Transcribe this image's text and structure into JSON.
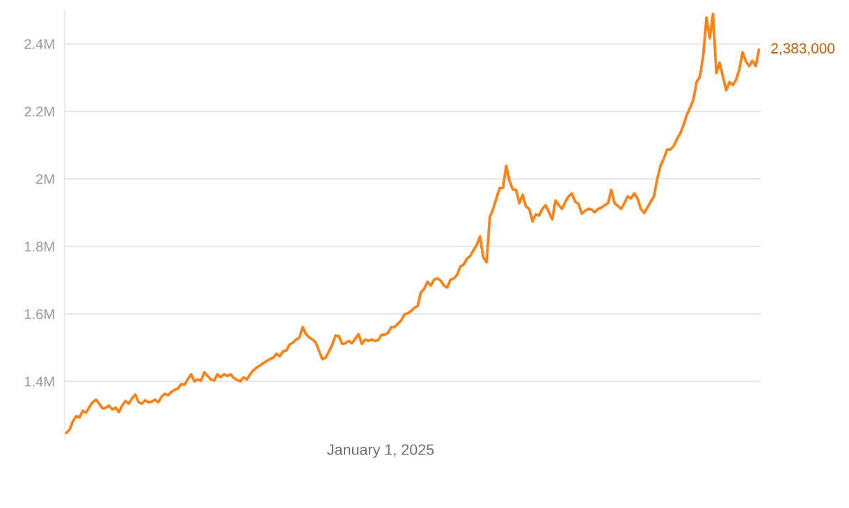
{
  "chart_data": {
    "type": "line",
    "grid": "y",
    "marker": "none",
    "line_style": "solid",
    "yticks": [
      {
        "value": 1400000,
        "label": "1.4M"
      },
      {
        "value": 1600000,
        "label": "1.6M"
      },
      {
        "value": 1800000,
        "label": "1.8M"
      },
      {
        "value": 2000000,
        "label": "2M"
      },
      {
        "value": 2200000,
        "label": "2.2M"
      },
      {
        "value": 2400000,
        "label": "2.4M"
      }
    ],
    "categories": [
      null,
      null,
      null,
      null,
      null,
      null,
      null,
      null,
      null,
      null,
      null,
      null,
      null,
      null,
      null,
      null,
      null,
      null,
      null,
      null,
      null,
      null,
      null,
      null,
      null,
      null,
      null,
      null,
      null,
      null,
      null,
      null,
      null,
      null,
      null,
      null,
      null,
      null,
      null,
      null,
      null,
      null,
      null,
      null,
      null,
      null,
      null,
      null,
      null,
      null,
      null,
      null,
      null,
      null,
      null,
      null,
      null,
      null,
      null,
      null,
      null,
      null,
      null,
      null,
      null,
      null,
      null,
      null,
      null,
      null,
      null,
      null,
      null,
      null,
      null,
      null,
      null,
      null,
      null,
      null,
      null,
      null,
      null,
      null,
      null,
      null,
      null,
      null,
      null,
      null,
      null,
      null,
      null,
      null,
      null,
      null,
      null,
      null,
      null,
      null,
      null,
      null,
      null,
      null,
      null,
      null,
      null,
      null,
      null,
      null,
      null,
      null,
      null,
      null,
      null,
      null,
      null,
      null,
      null,
      null,
      null,
      null,
      null,
      null,
      null,
      null,
      null,
      null,
      null,
      null,
      null,
      null,
      null,
      null,
      null,
      null,
      null,
      null,
      null,
      null,
      null,
      null,
      null,
      null,
      null,
      null,
      null,
      null,
      null,
      null,
      null,
      null,
      null,
      null,
      null,
      null,
      null,
      null,
      null,
      null,
      null,
      null,
      null,
      null,
      null,
      null,
      null,
      null,
      null,
      null,
      null,
      null,
      null,
      null,
      null,
      null,
      null,
      null,
      null,
      null,
      null,
      null,
      null,
      null,
      null,
      null,
      null,
      null,
      null,
      null,
      null,
      null,
      null,
      null,
      null,
      null,
      null,
      null,
      null,
      null,
      null,
      null,
      null,
      null,
      null,
      null,
      null,
      null,
      null,
      null,
      null,
      null
    ],
    "series": [
      {
        "color": "#fd8216",
        "values": [
          1247000,
          1258000,
          1282000,
          1297000,
          1293000,
          1313000,
          1307000,
          1324000,
          1338000,
          1346000,
          1334000,
          1320000,
          1322000,
          1328000,
          1317000,
          1322000,
          1309000,
          1328000,
          1342000,
          1334000,
          1350000,
          1361000,
          1338000,
          1334000,
          1344000,
          1338000,
          1340000,
          1346000,
          1338000,
          1355000,
          1363000,
          1359000,
          1369000,
          1375000,
          1379000,
          1392000,
          1390000,
          1406000,
          1421000,
          1400000,
          1406000,
          1402000,
          1427000,
          1416000,
          1406000,
          1402000,
          1421000,
          1412000,
          1421000,
          1416000,
          1421000,
          1410000,
          1404000,
          1400000,
          1412000,
          1406000,
          1421000,
          1433000,
          1441000,
          1447000,
          1454000,
          1460000,
          1466000,
          1470000,
          1482000,
          1474000,
          1489000,
          1491000,
          1509000,
          1515000,
          1524000,
          1530000,
          1561000,
          1540000,
          1530000,
          1524000,
          1515000,
          1489000,
          1466000,
          1470000,
          1489000,
          1509000,
          1536000,
          1534000,
          1511000,
          1513000,
          1520000,
          1513000,
          1526000,
          1540000,
          1511000,
          1524000,
          1520000,
          1524000,
          1520000,
          1522000,
          1538000,
          1538000,
          1544000,
          1561000,
          1561000,
          1571000,
          1581000,
          1598000,
          1602000,
          1608000,
          1618000,
          1623000,
          1664000,
          1674000,
          1695000,
          1684000,
          1701000,
          1705000,
          1699000,
          1684000,
          1678000,
          1701000,
          1705000,
          1715000,
          1740000,
          1746000,
          1763000,
          1771000,
          1788000,
          1804000,
          1829000,
          1767000,
          1753000,
          1887000,
          1911000,
          1942000,
          1973000,
          1973000,
          2039000,
          1994000,
          1969000,
          1967000,
          1928000,
          1953000,
          1918000,
          1911000,
          1874000,
          1895000,
          1891000,
          1911000,
          1922000,
          1901000,
          1880000,
          1936000,
          1922000,
          1911000,
          1932000,
          1948000,
          1957000,
          1932000,
          1926000,
          1897000,
          1905000,
          1911000,
          1909000,
          1901000,
          1911000,
          1915000,
          1922000,
          1928000,
          1967000,
          1928000,
          1920000,
          1911000,
          1928000,
          1948000,
          1942000,
          1957000,
          1942000,
          1911000,
          1899000,
          1915000,
          1932000,
          1948000,
          2000000,
          2039000,
          2060000,
          2087000,
          2087000,
          2097000,
          2118000,
          2134000,
          2159000,
          2190000,
          2210000,
          2235000,
          2287000,
          2303000,
          2365000,
          2478000,
          2416000,
          2489000,
          2313000,
          2344000,
          2303000,
          2262000,
          2287000,
          2278000,
          2293000,
          2324000,
          2375000,
          2348000,
          2334000,
          2350000,
          2334000,
          2383000
        ]
      }
    ],
    "ylim": [
      1230000,
      2500000
    ],
    "annotations": [
      "2,383,000",
      "January 1, 2025"
    ]
  }
}
